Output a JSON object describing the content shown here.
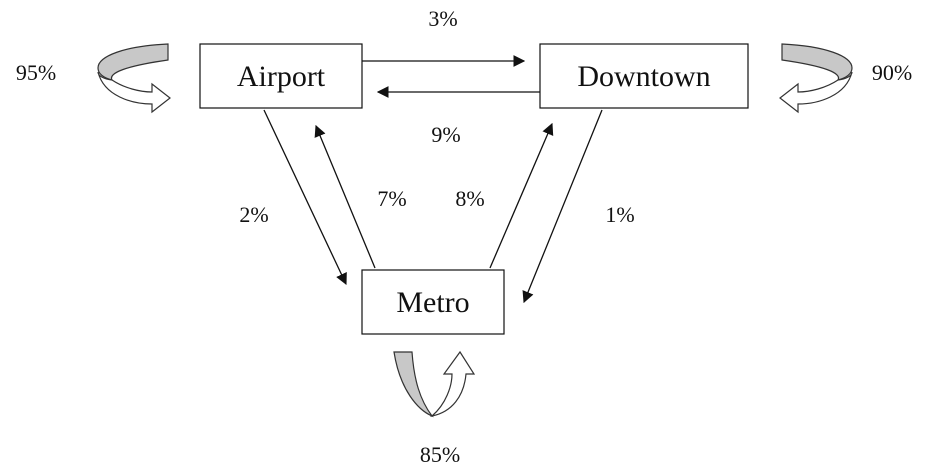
{
  "nodes": {
    "airport": "Airport",
    "downtown": "Downtown",
    "metro": "Metro"
  },
  "transitions": {
    "airport_to_downtown": "3%",
    "downtown_to_airport": "9%",
    "airport_to_metro": "2%",
    "metro_to_airport": "7%",
    "metro_to_downtown": "8%",
    "downtown_to_metro": "1%",
    "airport_stay": "95%",
    "downtown_stay": "90%",
    "metro_stay": "85%"
  }
}
